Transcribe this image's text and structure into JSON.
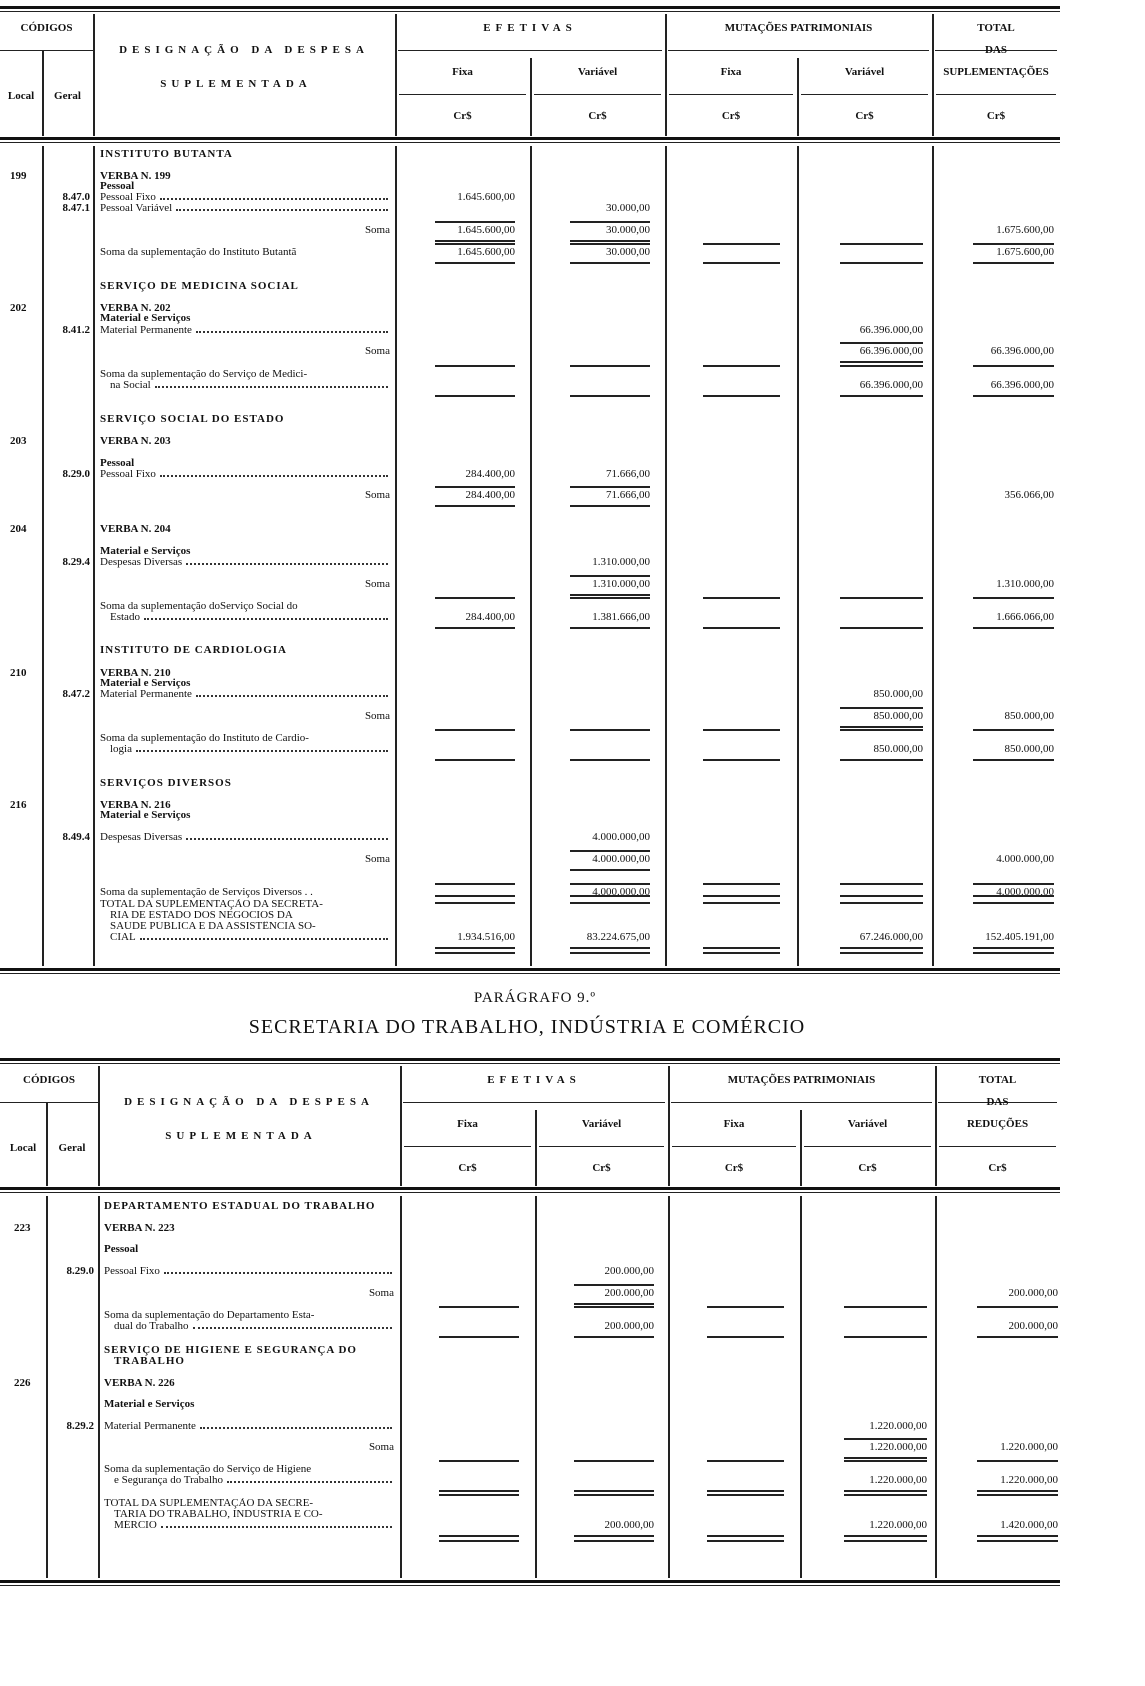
{
  "table1": {
    "header": {
      "codigos": "CÓDIGOS",
      "local": "Local",
      "geral": "Geral",
      "designacao_1": "DESIGNAÇÃO DA DESPESA",
      "designacao_2": "SUPLEMENTADA",
      "efetivas": "EFETIVAS",
      "mutacoes": "MUTAÇÕES PATRIMONIAIS",
      "fixa": "Fixa",
      "variavel": "Variável",
      "currency": "Cr$",
      "total_1": "TOTAL",
      "total_2": "DAS",
      "total_3": "SUPLEMENTAÇÕES"
    },
    "rows": [
      {
        "kind": "heading",
        "text": [
          "INSTITUTO BUTANTA"
        ]
      },
      {
        "kind": "verba",
        "local": "199",
        "text": [
          "VERBA N. 199"
        ]
      },
      {
        "kind": "sub",
        "text": [
          "Pessoal"
        ]
      },
      {
        "kind": "item",
        "geral": "8.47.0",
        "text": [
          "Pessoal Fixo"
        ],
        "fixa": "1.645.600,00"
      },
      {
        "kind": "item",
        "geral": "8.47.1",
        "text": [
          "Pessoal Variável"
        ],
        "variavel": "30.000,00"
      },
      {
        "kind": "soma",
        "text": [
          "Soma"
        ],
        "fixa": "1.645.600,00",
        "variavel": "30.000,00",
        "total": "1.675.600,00"
      },
      {
        "kind": "sum",
        "text": [
          "Soma da suplementação do Instituto  Butantã"
        ],
        "fixa": "1.645.600,00",
        "variavel": "30.000,00",
        "total": "1.675.600,00"
      },
      {
        "kind": "heading",
        "text": [
          "SERVIÇO DE MEDICINA SOCIAL"
        ]
      },
      {
        "kind": "verba",
        "local": "202",
        "text": [
          "VERBA N. 202"
        ]
      },
      {
        "kind": "sub",
        "text": [
          "Material e Serviços"
        ]
      },
      {
        "kind": "item",
        "geral": "8.41.2",
        "text": [
          "Material Permanente"
        ],
        "mvar": "66.396.000,00"
      },
      {
        "kind": "soma",
        "text": [
          "Soma"
        ],
        "mvar": "66.396.000,00",
        "total": "66.396.000,00"
      },
      {
        "kind": "sum",
        "text": [
          "Soma da suplementação do Serviço de Medici-",
          "na Social"
        ],
        "mvar": "66.396.000,00",
        "total": "66.396.000,00"
      },
      {
        "kind": "heading",
        "text": [
          "SERVIÇO SOCIAL DO ESTADO"
        ]
      },
      {
        "kind": "verba",
        "local": "203",
        "text": [
          "VERBA N. 203"
        ]
      },
      {
        "kind": "sub",
        "text": [
          "Pessoal"
        ]
      },
      {
        "kind": "item",
        "geral": "8.29.0",
        "text": [
          "Pessoal Fixo"
        ],
        "fixa": "284.400,00",
        "variavel": "71.666,00"
      },
      {
        "kind": "soma",
        "text": [
          "Soma"
        ],
        "fixa": "284.400,00",
        "variavel": "71.666,00",
        "total": "356.066,00"
      },
      {
        "kind": "verba",
        "local": "204",
        "text": [
          "VERBA N. 204"
        ]
      },
      {
        "kind": "sub",
        "text": [
          "Material e Serviços"
        ]
      },
      {
        "kind": "item",
        "geral": "8.29.4",
        "text": [
          "Despesas Diversas"
        ],
        "variavel": "1.310.000,00"
      },
      {
        "kind": "soma",
        "text": [
          "Soma"
        ],
        "variavel": "1.310.000,00",
        "total": "1.310.000,00"
      },
      {
        "kind": "sum",
        "text": [
          "Soma da suplementação doServiço  Social  do",
          "Estado"
        ],
        "fixa": "284.400,00",
        "variavel": "1.381.666,00",
        "total": "1.666.066,00"
      },
      {
        "kind": "heading",
        "text": [
          "INSTITUTO DE CARDIOLOGIA"
        ]
      },
      {
        "kind": "verba",
        "local": "210",
        "text": [
          "VERBA N. 210"
        ]
      },
      {
        "kind": "sub",
        "text": [
          "Material e Serviços"
        ]
      },
      {
        "kind": "item",
        "geral": "8.47.2",
        "text": [
          "Material Permanente"
        ],
        "mvar": "850.000,00"
      },
      {
        "kind": "soma",
        "text": [
          "Soma"
        ],
        "mvar": "850.000,00",
        "total": "850.000,00"
      },
      {
        "kind": "sum",
        "text": [
          "Soma da suplementação do Instituto de Cardio-",
          "logia"
        ],
        "mvar": "850.000,00",
        "total": "850.000,00"
      },
      {
        "kind": "heading",
        "text": [
          "SERVIÇOS DIVERSOS"
        ]
      },
      {
        "kind": "verba",
        "local": "216",
        "text": [
          "VERBA N. 216"
        ]
      },
      {
        "kind": "sub",
        "text": [
          "Material e Serviços"
        ]
      },
      {
        "kind": "item",
        "geral": "8.49.4",
        "text": [
          "Despesas Diversas"
        ],
        "variavel": "4.000.000,00"
      },
      {
        "kind": "soma",
        "text": [
          "Soma"
        ],
        "variavel": "4.000.000,00",
        "total": "4.000.000,00"
      },
      {
        "kind": "sum",
        "text": [
          "Soma da suplementação  de Serviços Diversos . ."
        ],
        "variavel": "4.000.000,00",
        "total": "4.000.000,00"
      },
      {
        "kind": "total",
        "text": [
          "TOTAL  DA  SUPLEMENTAÇÃO DA SECRETA-",
          "RIA DE ESTADO  DOS NEGÓCIOS  DA",
          "SAÚDE PÚBLICA E DA ASSISTÊNCIA SO-",
          "CIAL"
        ],
        "fixa": "1.934.516,00",
        "variavel": "83.224.675,00",
        "mvar": "67.246.000,00",
        "total": "152.405.191,00"
      }
    ]
  },
  "section": {
    "paragraph": "PARÁGRAFO 9.º",
    "title": "SECRETARIA DO TRABALHO, INDÚSTRIA E COMÉRCIO"
  },
  "table2": {
    "header": {
      "codigos": "CÓDIGOS",
      "local": "Local",
      "geral": "Geral",
      "designacao_1": "DESIGNAÇÃO DA DESPESA",
      "designacao_2": "SUPLEMENTADA",
      "efetivas": "EFETIVAS",
      "mutacoes": "MUTAÇÕES PATRIMONIAIS",
      "fixa": "Fixa",
      "variavel": "Variável",
      "currency": "Cr$",
      "total_1": "TOTAL",
      "total_2": "DAS",
      "total_3": "REDUÇÕES"
    },
    "rows": [
      {
        "kind": "heading",
        "text": [
          "DEPARTAMENTO ESTADUAL DO TRABALHO"
        ]
      },
      {
        "kind": "verba",
        "local": "223",
        "text": [
          "VERBA N. 223"
        ]
      },
      {
        "kind": "sub",
        "text": [
          "Pessoal"
        ]
      },
      {
        "kind": "item",
        "geral": "8.29.0",
        "text": [
          "Pessoal Fixo"
        ],
        "variavel": "200.000,00"
      },
      {
        "kind": "soma",
        "text": [
          "Soma"
        ],
        "variavel": "200.000,00",
        "total": "200.000,00"
      },
      {
        "kind": "sum",
        "text": [
          "Soma  da  suplementação  do Departamento  Esta-",
          "dual do Trabalho"
        ],
        "variavel": "200.000,00",
        "total": "200.000,00"
      },
      {
        "kind": "heading",
        "text": [
          "SERVIÇO DE HIGIENE E SEGURANÇA  DO",
          "TRABALHO"
        ]
      },
      {
        "kind": "verba",
        "local": "226",
        "text": [
          "VERBA N. 226"
        ]
      },
      {
        "kind": "sub",
        "text": [
          "Material e Serviços"
        ]
      },
      {
        "kind": "item",
        "geral": "8.29.2",
        "text": [
          "Material Permanente"
        ],
        "mvar": "1.220.000,00"
      },
      {
        "kind": "soma",
        "text": [
          "Soma"
        ],
        "mvar": "1.220.000,00",
        "total": "1.220.000,00"
      },
      {
        "kind": "sum",
        "text": [
          "Soma da suplementação do Serviço de Higiene",
          "e Segurança do Trabalho"
        ],
        "mvar": "1.220.000,00",
        "total": "1.220.000,00"
      },
      {
        "kind": "total",
        "text": [
          "TOTAL DA SUPLEMENTAÇÃO  DA  SECRE-",
          "TARIA DO TRABALHO, INDÚSTRIA E CO-",
          "MÉRCIO"
        ],
        "variavel": "200.000,00",
        "mvar": "1.220.000,00",
        "total": "1.420.000,00"
      }
    ]
  }
}
